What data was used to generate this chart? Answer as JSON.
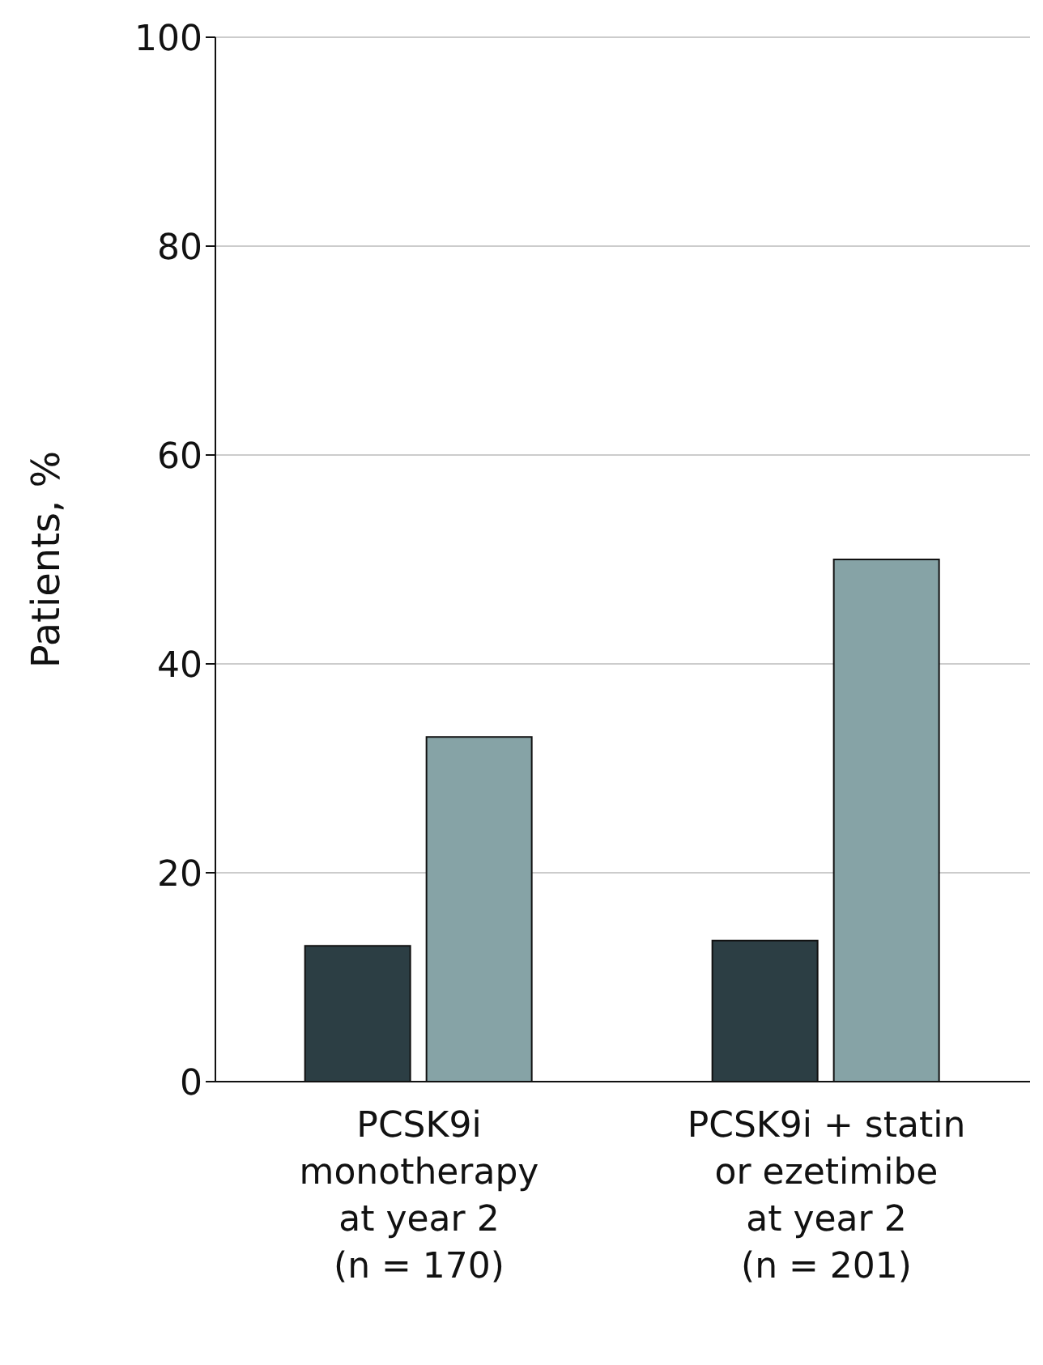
{
  "chart_data": {
    "type": "bar",
    "ylabel": "Patients, %",
    "categories": [
      "PCSK9i\nmonotherapy\nat year 2\n(n = 170)",
      "PCSK9i + statin\nor ezetimibe\nat year 2\n(n = 201)"
    ],
    "series": [
      {
        "color": "#2c3e44",
        "values": [
          13,
          13.5
        ]
      },
      {
        "color": "#86a3a6",
        "values": [
          33,
          50
        ]
      }
    ],
    "ylim": [
      0,
      100
    ],
    "yticks": [
      0,
      20,
      40,
      60,
      80,
      100
    ],
    "grid": "y",
    "legend": false
  }
}
